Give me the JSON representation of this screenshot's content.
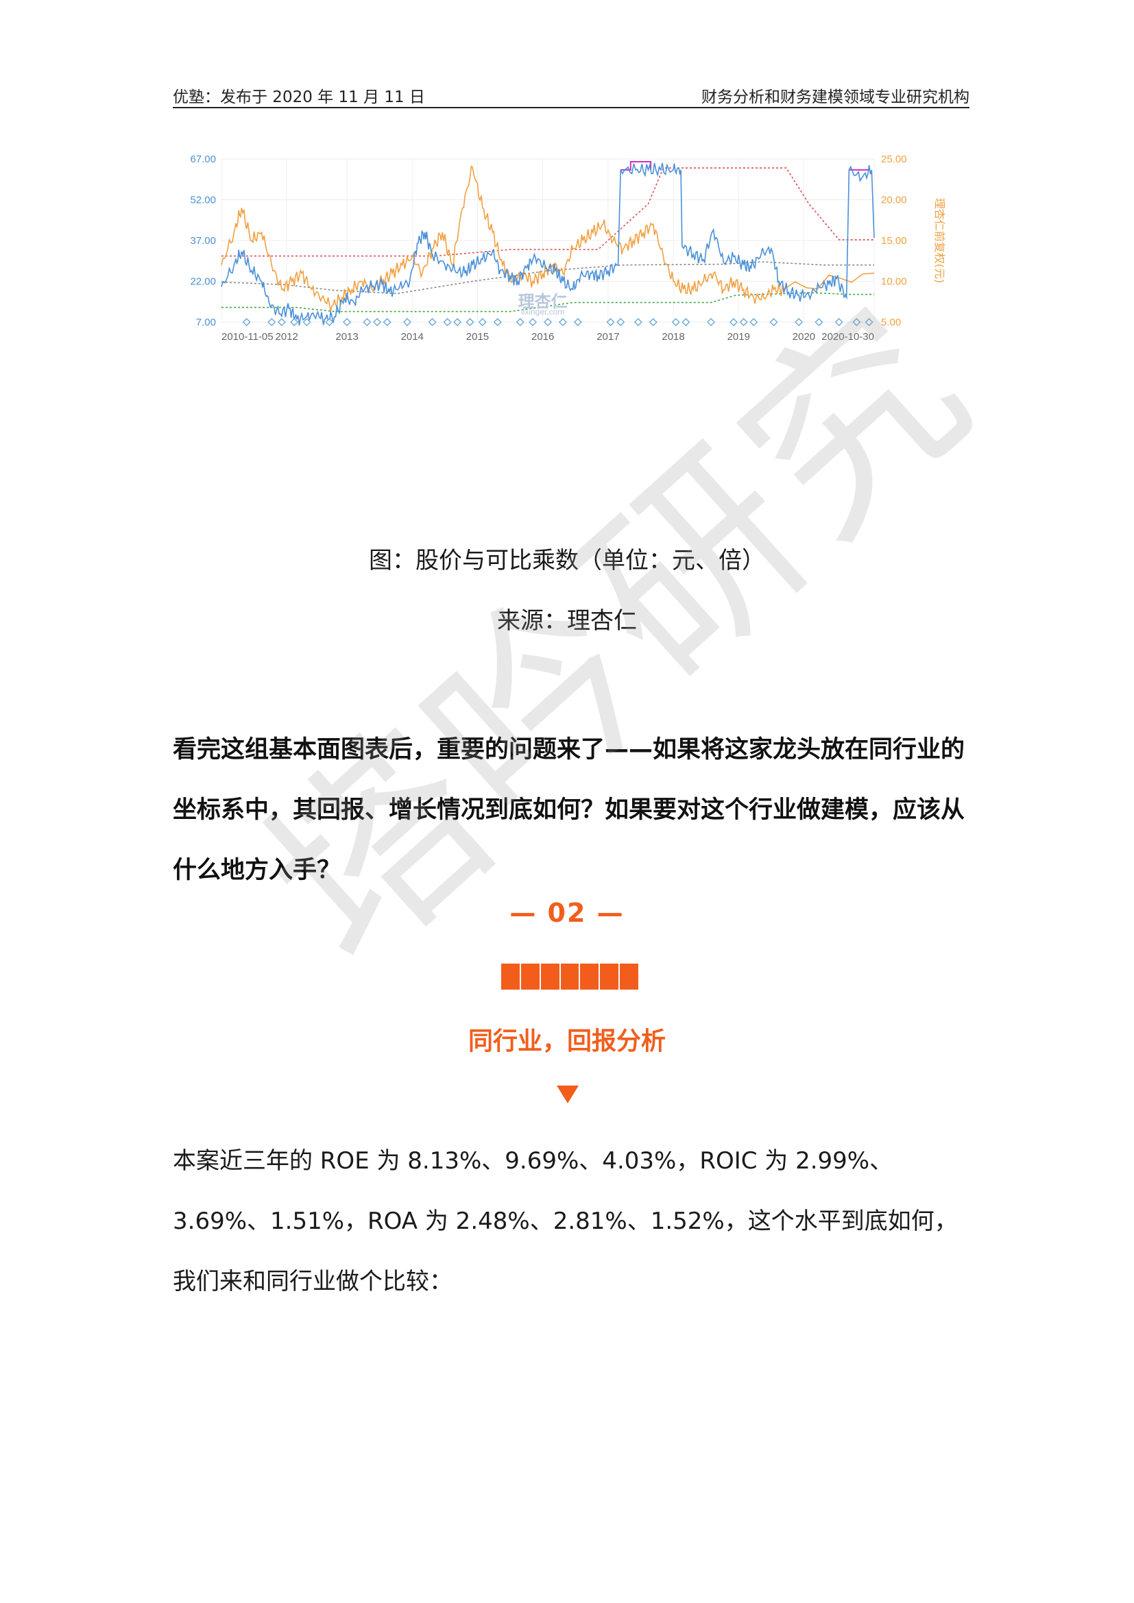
{
  "header": {
    "left": "优塾：发布于 2020 年 11 月 11 日",
    "right": "财务分析和财务建模领域专业研究机构"
  },
  "chart_data": {
    "type": "line",
    "left_axis_ticks": [
      "67.00",
      "52.00",
      "37.00",
      "22.00",
      "7.00"
    ],
    "right_axis_ticks": [
      "25.00",
      "20.00",
      "15.00",
      "10.00",
      "5.00"
    ],
    "right_axis_label": "理杏仁前复权(元)",
    "x_ticks": [
      "2010-11-05",
      "2012",
      "2013",
      "2014",
      "2015",
      "2016",
      "2017",
      "2018",
      "2019",
      "2020",
      "2020-10-30"
    ],
    "left_ylim": [
      7,
      67
    ],
    "right_ylim": [
      5,
      25
    ],
    "logo_text": "理杏仁",
    "logo_url": "lixinger.com",
    "colors": {
      "multiple": "#4a90d9",
      "price": "#f0a040",
      "upper_band": "#e05050",
      "median_band": "#888888",
      "lower_band": "#40a840",
      "cap_band": "#d030c0",
      "markers": "#6aa8d8"
    },
    "series": [
      {
        "values": [
          20,
          28,
          33,
          26,
          22,
          14,
          10,
          12,
          8,
          9,
          10,
          8,
          9,
          16,
          14,
          19,
          20,
          21,
          18,
          20,
          22,
          36,
          40,
          32,
          28,
          26,
          25,
          28,
          30,
          33,
          26,
          24,
          22,
          28,
          31,
          27,
          26,
          22,
          19,
          24,
          25,
          24,
          26,
          28,
          63,
          63,
          63,
          63,
          63,
          63,
          35,
          32,
          30,
          41,
          29,
          31,
          28,
          27,
          32,
          34,
          22,
          18,
          17,
          17,
          20,
          21,
          23,
          16,
          63,
          60,
          63,
          38
        ],
        "x": [
          0,
          0.5,
          0.8,
          1.2,
          1.6,
          1.9,
          2.3,
          2.7,
          3.0,
          3.4,
          3.8,
          4.1,
          4.5,
          4.9,
          5.3,
          5.6,
          6.0,
          6.4,
          6.7,
          7.1,
          7.5,
          7.8,
          8.1,
          8.4,
          8.9,
          9.3,
          9.7,
          10.0,
          10.4,
          10.8,
          11.1,
          11.5,
          11.8,
          12.2,
          12.5,
          12.9,
          13.3,
          13.6,
          14.0,
          14.3,
          14.7,
          15.0,
          15.4,
          15.8,
          15.9,
          16.5,
          17.0,
          17.5,
          18.0,
          18.3,
          18.35,
          18.8,
          19.2,
          19.6,
          20.0,
          20.4,
          20.8,
          21.1,
          21.5,
          21.9,
          22.2,
          22.6,
          23.0,
          23.4,
          23.8,
          24.2,
          24.5,
          24.9,
          25.0,
          25.5,
          25.9,
          26.0
        ]
      },
      {
        "values": [
          12,
          16,
          19,
          15,
          16,
          12,
          9,
          10,
          11,
          9,
          8,
          7,
          8,
          9,
          10,
          9,
          10,
          11,
          12,
          13,
          11,
          14,
          16,
          12,
          19,
          24,
          19,
          16,
          12,
          10,
          11,
          10,
          11,
          12,
          11,
          14,
          15,
          16,
          17,
          15,
          14,
          15,
          16,
          17,
          13,
          10,
          9,
          9,
          10,
          11,
          9,
          10,
          9,
          8,
          8,
          9,
          9,
          11
        ],
        "x": [
          0,
          0.5,
          0.8,
          1.2,
          1.6,
          2.0,
          2.4,
          2.8,
          3.2,
          3.6,
          4.0,
          4.4,
          4.8,
          5.2,
          5.6,
          6.0,
          6.4,
          6.8,
          7.2,
          7.6,
          8.0,
          8.4,
          8.8,
          9.2,
          9.6,
          10.0,
          10.4,
          10.8,
          11.2,
          11.6,
          12.0,
          12.4,
          12.8,
          13.2,
          13.6,
          14.0,
          14.4,
          14.8,
          15.2,
          15.6,
          16.0,
          16.4,
          16.8,
          17.2,
          17.6,
          18.0,
          18.4,
          18.8,
          19.2,
          19.6,
          20.0,
          20.4,
          20.8,
          21.2,
          21.6,
          22.0,
          22.4,
          26.0
        ]
      }
    ]
  },
  "captions": {
    "figure": "图：股价与可比乘数（单位：元、倍）",
    "source": "来源：理杏仁"
  },
  "bold_paragraph": "看完这组基本面图表后，重要的问题来了——如果将这家龙头放在同行业的坐标系中，其回报、增长情况到底如何？如果要对这个行业做建模，应该从什么地方入手？",
  "section": {
    "number": "— 02 —",
    "title": "同行业，回报分析"
  },
  "body_paragraph": " 本案近三年的 ROE 为 8.13%、9.69%、4.03%，ROIC 为 2.99%、3.69%、1.51%，ROA 为 2.48%、2.81%、1.52%，这个水平到底如何，我们来和同行业做个比较：",
  "watermark": "塔吟研究"
}
